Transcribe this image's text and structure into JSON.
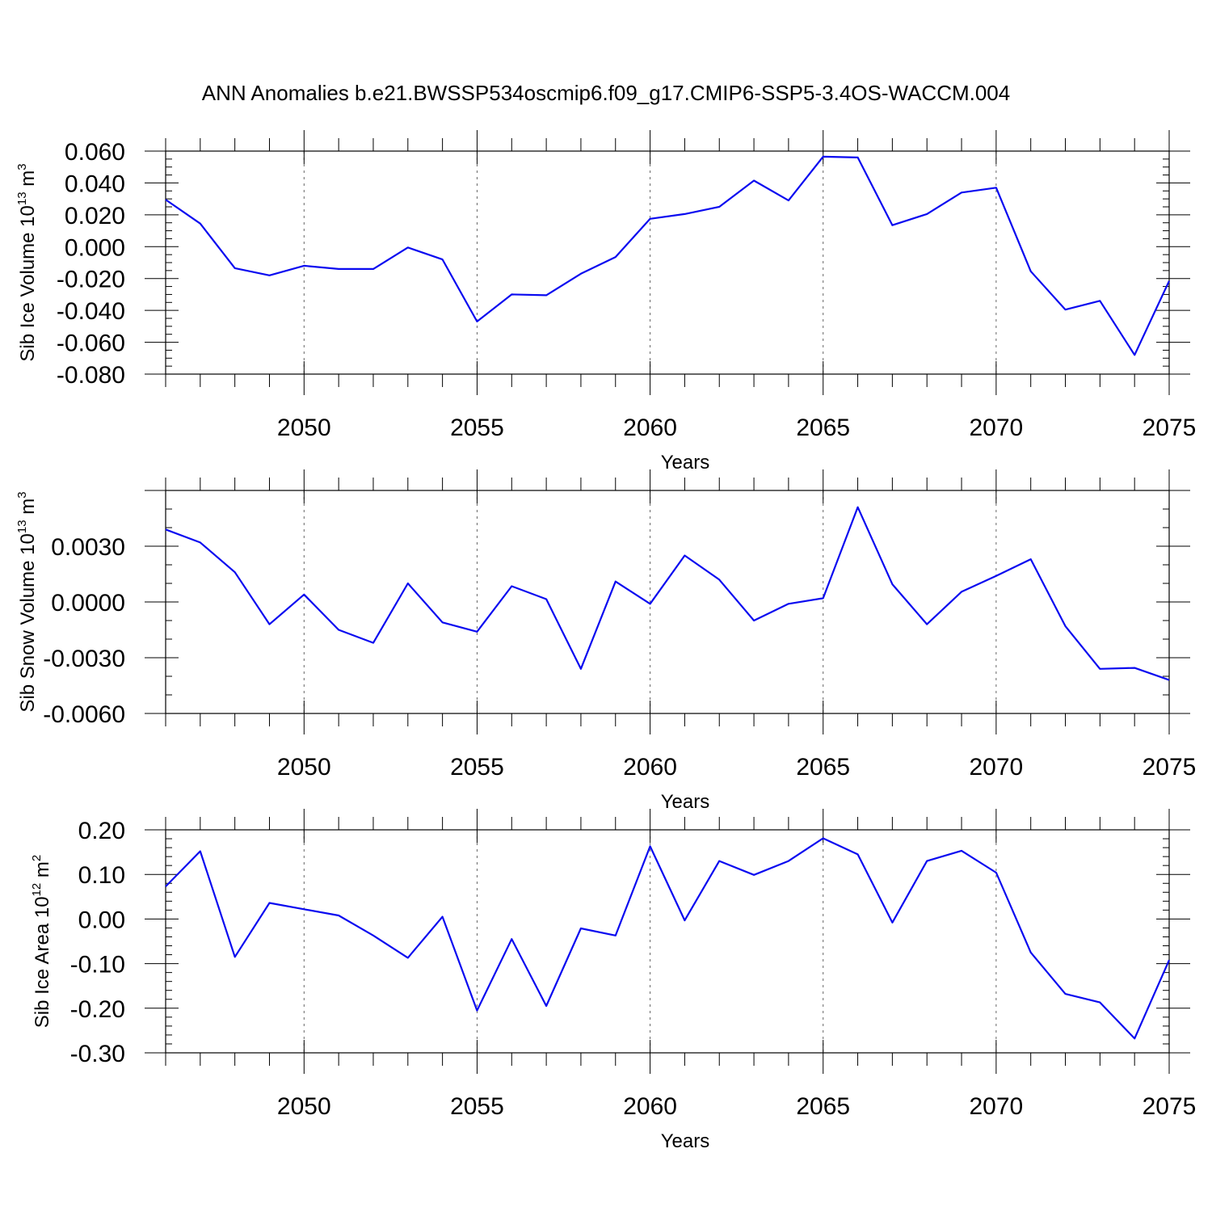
{
  "title": "ANN Anomalies b.e21.BWSSP534oscmip6.f09_g17.CMIP6-SSP5-3.4OS-WACCM.004",
  "line_color": "#0a0af0",
  "chart_data": [
    {
      "type": "line",
      "xlabel": "Years",
      "ylabel": "Sib Ice Volume 10",
      "ylabel_exp": "13",
      "ylabel_unit": "m",
      "ylabel_unit_exp": "3",
      "xlim": [
        2046,
        2075
      ],
      "ylim": [
        -0.08,
        0.06
      ],
      "x_major_ticks": [
        2050,
        2055,
        2060,
        2065,
        2070,
        2075
      ],
      "x_tick_labels": [
        "2050",
        "2055",
        "2060",
        "2065",
        "2070",
        "2075"
      ],
      "y_major_ticks": [
        -0.08,
        -0.06,
        -0.04,
        -0.02,
        0.0,
        0.02,
        0.04,
        0.06
      ],
      "y_tick_labels": [
        "-0.080",
        "-0.060",
        "-0.040",
        "-0.020",
        "0.000",
        "0.020",
        "0.040",
        "0.060"
      ],
      "y_minor_step": 0.005,
      "grid": "vertical dashed at major x ticks",
      "x": [
        2046,
        2047,
        2048,
        2049,
        2050,
        2051,
        2052,
        2053,
        2054,
        2055,
        2056,
        2057,
        2058,
        2059,
        2060,
        2061,
        2062,
        2063,
        2064,
        2065,
        2066,
        2067,
        2068,
        2069,
        2070,
        2071,
        2072,
        2073,
        2074,
        2075
      ],
      "values": [
        0.0295,
        0.0145,
        -0.0135,
        -0.018,
        -0.012,
        -0.014,
        -0.014,
        -0.0005,
        -0.008,
        -0.047,
        -0.03,
        -0.0305,
        -0.017,
        -0.0065,
        0.0175,
        0.0205,
        0.025,
        0.0415,
        0.029,
        0.0565,
        0.056,
        0.0135,
        0.0205,
        0.034,
        0.037,
        -0.0155,
        -0.0395,
        -0.034,
        -0.068,
        -0.0215
      ]
    },
    {
      "type": "line",
      "xlabel": "Years",
      "ylabel": "Sib Snow Volume 10",
      "ylabel_exp": "13",
      "ylabel_unit": "m",
      "ylabel_unit_exp": "3",
      "xlim": [
        2046,
        2075
      ],
      "ylim": [
        -0.006,
        0.006
      ],
      "x_major_ticks": [
        2050,
        2055,
        2060,
        2065,
        2070,
        2075
      ],
      "x_tick_labels": [
        "2050",
        "2055",
        "2060",
        "2065",
        "2070",
        "2075"
      ],
      "y_major_ticks": [
        -0.006,
        -0.003,
        0.0,
        0.003
      ],
      "y_tick_labels": [
        "-0.0060",
        "-0.0030",
        "0.0000",
        "0.0030"
      ],
      "y_minor_step": 0.001,
      "grid": "vertical dashed at major x ticks",
      "x": [
        2046,
        2047,
        2048,
        2049,
        2050,
        2051,
        2052,
        2053,
        2054,
        2055,
        2056,
        2057,
        2058,
        2059,
        2060,
        2061,
        2062,
        2063,
        2064,
        2065,
        2066,
        2067,
        2068,
        2069,
        2070,
        2071,
        2072,
        2073,
        2074,
        2075
      ],
      "values": [
        0.0039,
        0.0032,
        0.0016,
        -0.0012,
        0.0004,
        -0.0015,
        -0.0022,
        0.001,
        -0.0011,
        -0.0016,
        0.00085,
        0.00015,
        -0.0036,
        0.0011,
        -0.0001,
        0.0025,
        0.0012,
        -0.001,
        -0.0001,
        0.0002,
        0.0051,
        0.00095,
        -0.0012,
        0.00055,
        0.0014,
        0.0023,
        -0.0013,
        -0.0036,
        -0.00355,
        -0.0042
      ]
    },
    {
      "type": "line",
      "xlabel": "Years",
      "ylabel": "Sib Ice Area 10",
      "ylabel_exp": "12",
      "ylabel_unit": "m",
      "ylabel_unit_exp": "2",
      "xlim": [
        2046,
        2075
      ],
      "ylim": [
        -0.3,
        0.2
      ],
      "x_major_ticks": [
        2050,
        2055,
        2060,
        2065,
        2070,
        2075
      ],
      "x_tick_labels": [
        "2050",
        "2055",
        "2060",
        "2065",
        "2070",
        "2075"
      ],
      "y_major_ticks": [
        -0.3,
        -0.2,
        -0.1,
        0.0,
        0.1,
        0.2
      ],
      "y_tick_labels": [
        "-0.30",
        "-0.20",
        "-0.10",
        "0.00",
        "0.10",
        "0.20"
      ],
      "y_minor_step": 0.02,
      "grid": "vertical dashed at major x ticks",
      "x": [
        2046,
        2047,
        2048,
        2049,
        2050,
        2051,
        2052,
        2053,
        2054,
        2055,
        2056,
        2057,
        2058,
        2059,
        2060,
        2061,
        2062,
        2063,
        2064,
        2065,
        2066,
        2067,
        2068,
        2069,
        2070,
        2071,
        2072,
        2073,
        2074,
        2075
      ],
      "values": [
        0.073,
        0.152,
        -0.085,
        0.036,
        0.022,
        0.008,
        -0.037,
        -0.087,
        0.005,
        -0.205,
        -0.045,
        -0.195,
        -0.021,
        -0.037,
        0.163,
        -0.003,
        0.13,
        0.099,
        0.13,
        0.181,
        0.145,
        -0.008,
        0.13,
        0.153,
        0.104,
        -0.075,
        -0.168,
        -0.187,
        -0.268,
        -0.092
      ]
    }
  ]
}
